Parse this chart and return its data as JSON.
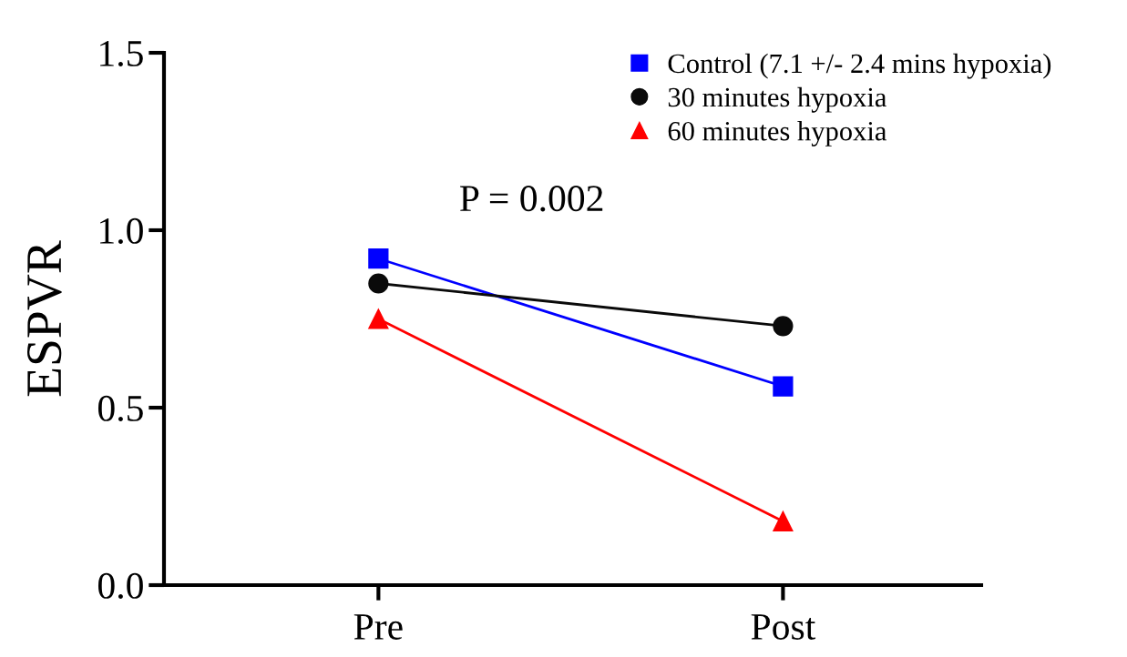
{
  "chart_data": {
    "type": "line",
    "ylabel": "ESPVR",
    "categories": [
      "Pre",
      "Post"
    ],
    "series": [
      {
        "name": "Control (7.1 +/- 2.4 mins hypoxia)",
        "color": "#0000ff",
        "marker": "square",
        "values": [
          0.92,
          0.56
        ]
      },
      {
        "name": "30 minutes hypoxia",
        "color": "#0a0a0a",
        "marker": "circle",
        "values": [
          0.85,
          0.73
        ]
      },
      {
        "name": "60 minutes hypoxia",
        "color": "#ff0000",
        "marker": "triangle",
        "values": [
          0.75,
          0.18
        ]
      }
    ],
    "ylim": [
      0,
      1.5
    ],
    "yticks": [
      {
        "value": 0,
        "label": "0.0"
      },
      {
        "value": 0.5,
        "label": "0.5"
      },
      {
        "value": 1.0,
        "label": "1.0"
      },
      {
        "value": 1.5,
        "label": "1.5"
      }
    ],
    "annotations": [
      "P = 0.002"
    ],
    "grid": false,
    "legend": "top right",
    "line_style": "solid"
  }
}
